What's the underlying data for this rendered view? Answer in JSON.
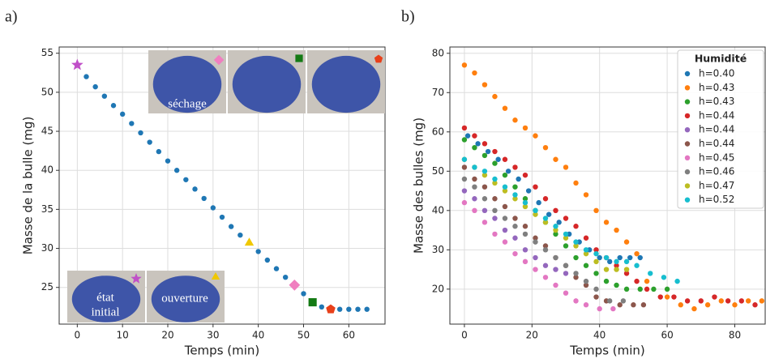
{
  "chart_data": [
    {
      "type": "scatter",
      "panel_label": "a)",
      "x_label": "Temps (min)",
      "y_label": "Masse de la bulle (mg)",
      "xlim": [
        -4,
        68
      ],
      "ylim": [
        20.3,
        55.8
      ],
      "xticks": [
        0,
        10,
        20,
        30,
        40,
        50,
        60
      ],
      "yticks": [
        25,
        30,
        35,
        40,
        45,
        50,
        55
      ],
      "grid": true,
      "series": [
        {
          "color": "#1f77b4",
          "x": [
            2,
            4,
            6,
            8,
            10,
            12,
            14,
            16,
            18,
            20,
            22,
            24,
            26,
            28,
            30,
            32,
            34,
            36,
            40,
            42,
            44,
            46,
            50,
            54,
            58,
            60,
            62,
            64
          ],
          "values": [
            52,
            50.7,
            49.5,
            48.3,
            47.2,
            46,
            44.8,
            43.6,
            42.4,
            41.2,
            40,
            38.8,
            37.6,
            36.4,
            35.2,
            34,
            32.8,
            31.7,
            29.6,
            28.5,
            27.4,
            26.3,
            24.2,
            22.5,
            22.2,
            22.2,
            22.2,
            22.2
          ]
        }
      ],
      "highlights": [
        {
          "x": 0,
          "y": 53.5,
          "marker": "star",
          "color": "#c04fc8"
        },
        {
          "x": 38,
          "y": 30.7,
          "marker": "triangle",
          "color": "#f0c800"
        },
        {
          "x": 48,
          "y": 25.3,
          "marker": "diamond",
          "color": "#f07fc0"
        },
        {
          "x": 52,
          "y": 23.1,
          "marker": "square",
          "color": "#147a14"
        },
        {
          "x": 56,
          "y": 22.2,
          "marker": "pentagon",
          "color": "#e8401a"
        }
      ],
      "annotations": [
        "séchage",
        "état",
        "initial",
        "ouverture"
      ]
    },
    {
      "type": "scatter",
      "panel_label": "b)",
      "x_label": "Temps (min)",
      "y_label": "Masse des bulles (mg)",
      "xlim": [
        -4.3,
        89
      ],
      "ylim": [
        11.1,
        81.6
      ],
      "xticks": [
        0,
        20,
        40,
        60,
        80
      ],
      "yticks": [
        20,
        30,
        40,
        50,
        60,
        70,
        80
      ],
      "grid": true,
      "legend_title": "Humidité",
      "legend": "upper right",
      "series": [
        {
          "name": "h=0.40",
          "color": "#1f77b4",
          "x": [
            1,
            4,
            7,
            10,
            13,
            16,
            19,
            22,
            25,
            28,
            31,
            34,
            37,
            40,
            43,
            46,
            49,
            52
          ],
          "values": [
            59,
            57,
            55,
            53,
            50,
            48,
            45,
            42,
            39,
            37,
            34,
            32,
            30,
            28,
            27,
            28,
            28,
            28
          ]
        },
        {
          "name": "h=0.43",
          "color": "#ff7f0e",
          "x": [
            0,
            3,
            6,
            9,
            12,
            15,
            18,
            21,
            24,
            27,
            30,
            33,
            36,
            39,
            42,
            45,
            48,
            51,
            54,
            60,
            64,
            68,
            72,
            76,
            80,
            84,
            88
          ],
          "values": [
            77,
            75,
            72,
            69,
            66,
            63,
            61,
            59,
            56,
            53,
            51,
            47,
            44,
            40,
            37,
            35,
            32,
            29,
            22,
            18,
            16,
            15,
            16,
            17,
            16,
            17,
            17
          ]
        },
        {
          "name": "h=0.43",
          "color": "#2ca02c",
          "x": [
            0,
            3,
            6,
            9,
            12,
            15,
            18,
            21,
            24,
            27,
            30,
            33,
            36,
            39,
            42,
            45,
            48,
            52,
            56,
            60
          ],
          "values": [
            58,
            56,
            54,
            52,
            49,
            46,
            43,
            40,
            37,
            34,
            31,
            28,
            26,
            24,
            22,
            21,
            20,
            20,
            20,
            20
          ]
        },
        {
          "name": "h=0.44",
          "color": "#d62728",
          "x": [
            0,
            3,
            6,
            9,
            12,
            15,
            18,
            21,
            24,
            27,
            30,
            33,
            36,
            39,
            42,
            45,
            48,
            51,
            54,
            58,
            62,
            66,
            70,
            74,
            78,
            82,
            86
          ],
          "values": [
            61,
            59,
            57,
            55,
            53,
            51,
            49,
            46,
            43,
            40,
            38,
            36,
            33,
            30,
            28,
            26,
            24,
            22,
            20,
            18,
            18,
            17,
            17,
            18,
            17,
            17,
            16
          ]
        },
        {
          "name": "h=0.44",
          "color": "#9467bd",
          "x": [
            0,
            3,
            6,
            9,
            12,
            15,
            18,
            21,
            24,
            27,
            30
          ],
          "values": [
            45,
            43,
            40,
            38,
            35,
            33,
            30,
            28,
            26,
            25,
            24
          ]
        },
        {
          "name": "h=0.44",
          "color": "#8c564b",
          "x": [
            0,
            3,
            6,
            9,
            12,
            15,
            18,
            21,
            24,
            27,
            30,
            33,
            36,
            39,
            42,
            46,
            50,
            53
          ],
          "values": [
            51,
            48,
            46,
            43,
            41,
            38,
            36,
            33,
            31,
            28,
            26,
            23,
            21,
            18,
            17,
            16,
            16,
            16
          ]
        },
        {
          "name": "h=0.45",
          "color": "#e377c2",
          "x": [
            0,
            3,
            6,
            9,
            12,
            15,
            18,
            21,
            24,
            27,
            30,
            33,
            36,
            40,
            44
          ],
          "values": [
            42,
            40,
            37,
            34,
            32,
            29,
            27,
            25,
            23,
            21,
            19,
            17,
            16,
            15,
            15
          ]
        },
        {
          "name": "h=0.46",
          "color": "#7f7f7f",
          "x": [
            0,
            3,
            6,
            9,
            12,
            15,
            18,
            21,
            24,
            27,
            30,
            33,
            36,
            39,
            43,
            47
          ],
          "values": [
            48,
            46,
            43,
            40,
            38,
            36,
            34,
            32,
            30,
            28,
            26,
            24,
            22,
            20,
            17,
            17
          ]
        },
        {
          "name": "h=0.47",
          "color": "#bcbd22",
          "x": [
            0,
            3,
            6,
            9,
            12,
            15,
            18,
            21,
            24,
            27,
            30,
            33,
            36,
            39,
            42,
            45,
            48
          ],
          "values": [
            53,
            51,
            49,
            47,
            45,
            43,
            41,
            39,
            37,
            35,
            33,
            31,
            29,
            27,
            25,
            25,
            25
          ]
        },
        {
          "name": "h=0.52",
          "color": "#17becf",
          "x": [
            0,
            3,
            6,
            9,
            12,
            15,
            18,
            21,
            24,
            27,
            30,
            33,
            36,
            39,
            42,
            45,
            48,
            51,
            55,
            59,
            63
          ],
          "values": [
            53,
            51,
            50,
            48,
            46,
            44,
            42,
            40,
            38,
            36,
            34,
            32,
            30,
            29,
            28,
            27,
            27,
            26,
            24,
            23,
            22
          ]
        }
      ]
    }
  ]
}
